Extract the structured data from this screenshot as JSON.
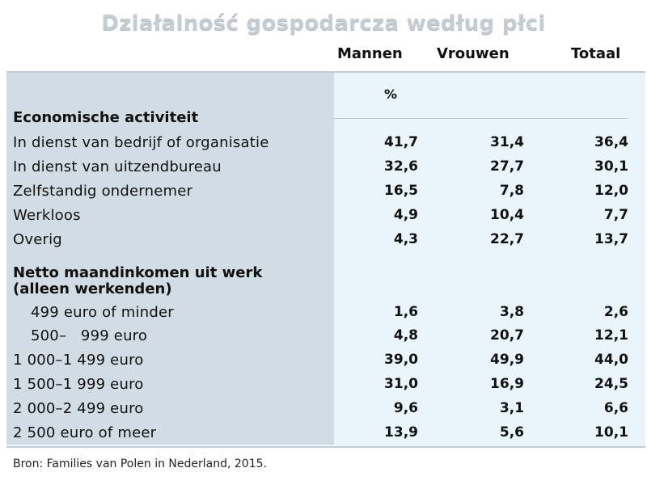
{
  "title": "Działalność gospodarcza według płci",
  "columns": [
    "Mannen",
    "Vrouwen",
    "Totaal"
  ],
  "unit": "%",
  "sections": [
    {
      "heading": [
        "Economische activiteit"
      ],
      "rows": [
        {
          "label": "In dienst van bedrijf of organisatie",
          "values": [
            "41,7",
            "31,4",
            "36,4"
          ]
        },
        {
          "label": "In dienst van uitzendbureau",
          "values": [
            "32,6",
            "27,7",
            "30,1"
          ]
        },
        {
          "label": "Zelfstandig ondernemer",
          "values": [
            "16,5",
            "7,8",
            "12,0"
          ]
        },
        {
          "label": "Werkloos",
          "values": [
            "4,9",
            "10,4",
            "7,7"
          ]
        },
        {
          "label": "Overig",
          "values": [
            "4,3",
            "22,7",
            "13,7"
          ]
        }
      ]
    },
    {
      "heading": [
        "Netto maandinkomen uit werk",
        "(alleen werkenden)"
      ],
      "rows": [
        {
          "label": "499 euro of minder",
          "values": [
            "1,6",
            "3,8",
            "2,6"
          ]
        },
        {
          "label": "500–   999 euro",
          "values": [
            "4,8",
            "20,7",
            "12,1"
          ]
        },
        {
          "label": "1 000–1 499 euro",
          "values": [
            "39,0",
            "49,9",
            "44,0"
          ]
        },
        {
          "label": "1 500–1 999 euro",
          "values": [
            "31,0",
            "16,9",
            "24,5"
          ]
        },
        {
          "label": "2 000–2 499 euro",
          "values": [
            "9,6",
            "3,1",
            "6,6"
          ]
        },
        {
          "label": "2 500 euro of meer",
          "values": [
            "13,9",
            "5,6",
            "10,1"
          ]
        }
      ]
    }
  ],
  "source": "Bron: Families van Polen in Nederland, 2015."
}
